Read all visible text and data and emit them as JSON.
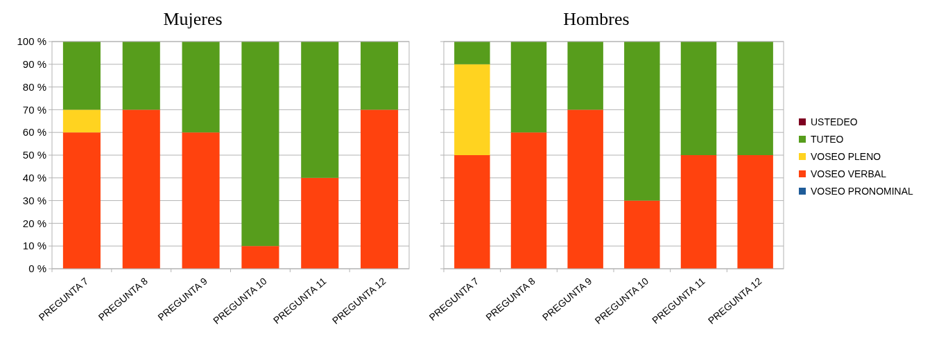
{
  "chart_data": [
    {
      "type": "bar",
      "title": "Mujeres",
      "stacked": true,
      "categories": [
        "PREGUNTA 7",
        "PREGUNTA 8",
        "PREGUNTA 9",
        "PREGUNTA 10",
        "PREGUNTA 11",
        "PREGUNTA 12"
      ],
      "series": [
        {
          "color": "#1f5c99",
          "values": [
            0,
            0,
            0,
            0,
            0,
            0
          ]
        },
        {
          "color": "#ff420e",
          "values": [
            60,
            70,
            60,
            10,
            40,
            70
          ]
        },
        {
          "color": "#ffd320",
          "values": [
            10,
            0,
            0,
            0,
            0,
            0
          ]
        },
        {
          "color": "#579d1c",
          "values": [
            30,
            30,
            40,
            90,
            60,
            30
          ]
        },
        {
          "color": "#7e0021",
          "values": [
            0,
            0,
            0,
            0,
            0,
            0
          ]
        }
      ],
      "ylim": [
        0,
        100
      ],
      "yticks": [
        {
          "value": 0,
          "label": "0 %"
        },
        {
          "value": 10,
          "label": "10 %"
        },
        {
          "value": 20,
          "label": "20 %"
        },
        {
          "value": 30,
          "label": "30 %"
        },
        {
          "value": 40,
          "label": "40 %"
        },
        {
          "value": 50,
          "label": "50 %"
        },
        {
          "value": 60,
          "label": "60 %"
        },
        {
          "value": 70,
          "label": "70 %"
        },
        {
          "value": 80,
          "label": "80 %"
        },
        {
          "value": 90,
          "label": "90 %"
        },
        {
          "value": 100,
          "label": "100 %"
        }
      ],
      "grid": "y",
      "legend": false
    },
    {
      "type": "bar",
      "title": "Hombres",
      "stacked": true,
      "categories": [
        "PREGUNTA 7",
        "PREGUNTA 8",
        "PREGUNTA 9",
        "PREGUNTA 10",
        "PREGUNTA 11",
        "PREGUNTA 12"
      ],
      "series": [
        {
          "name": "VOSEO PRONOMINAL",
          "color": "#1f5c99",
          "values": [
            0,
            0,
            0,
            0,
            0,
            0
          ]
        },
        {
          "name": "VOSEO VERBAL",
          "color": "#ff420e",
          "values": [
            50,
            60,
            70,
            30,
            50,
            50
          ]
        },
        {
          "name": "VOSEO PLENO",
          "color": "#ffd320",
          "values": [
            40,
            0,
            0,
            0,
            0,
            0
          ]
        },
        {
          "name": "TUTEO",
          "color": "#579d1c",
          "values": [
            10,
            40,
            30,
            70,
            50,
            50
          ]
        },
        {
          "name": "USTEDEO",
          "color": "#7e0021",
          "values": [
            0,
            0,
            0,
            0,
            0,
            0
          ]
        }
      ],
      "ylim": [
        0,
        100
      ],
      "yticks": [
        {
          "value": 0,
          "label": null
        },
        {
          "value": 10,
          "label": null
        },
        {
          "value": 20,
          "label": null
        },
        {
          "value": 30,
          "label": null
        },
        {
          "value": 40,
          "label": null
        },
        {
          "value": 50,
          "label": null
        },
        {
          "value": 60,
          "label": null
        },
        {
          "value": 70,
          "label": null
        },
        {
          "value": 80,
          "label": null
        },
        {
          "value": 90,
          "label": null
        },
        {
          "value": 100,
          "label": null
        }
      ],
      "tick_labels": "x",
      "grid": "y",
      "legend": "right"
    }
  ]
}
